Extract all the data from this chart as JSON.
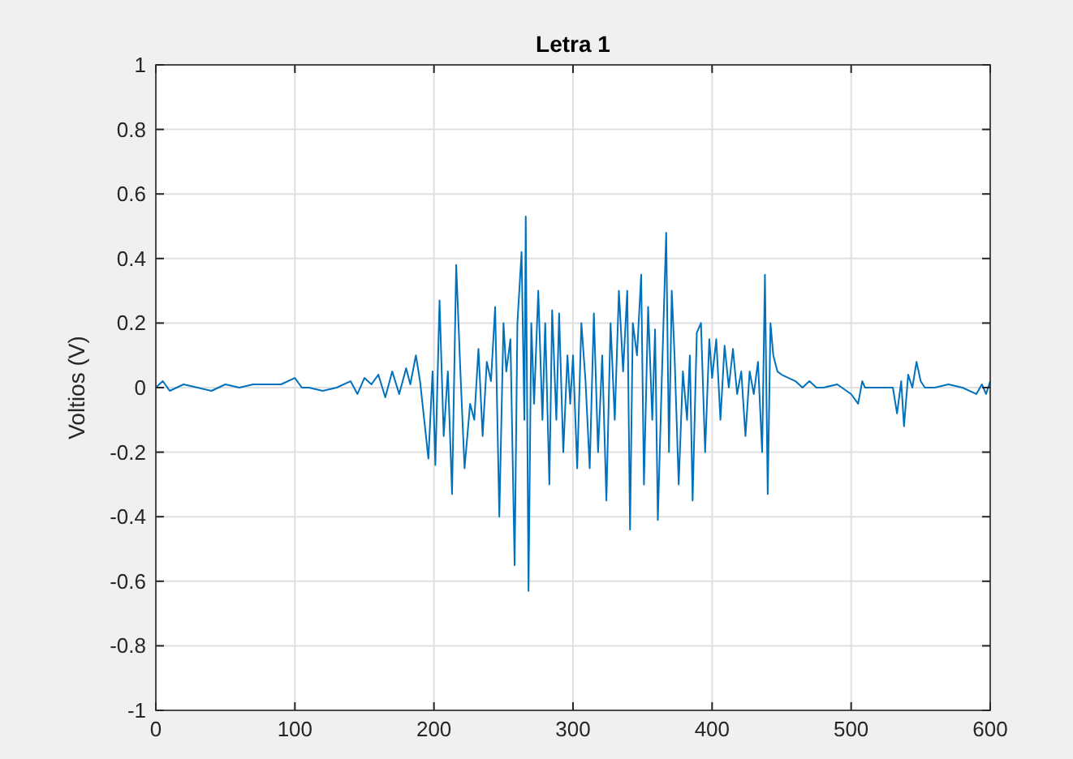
{
  "chart_data": {
    "type": "line",
    "title": "Letra 1",
    "ylabel": "Voltios (V)",
    "xlim": [
      0,
      600
    ],
    "xticks": [
      0,
      100,
      200,
      300,
      400,
      500,
      600
    ],
    "ylim": [
      -1,
      1
    ],
    "yticks": [
      -1,
      -0.8,
      -0.6,
      -0.4,
      -0.2,
      0,
      0.2,
      0.4,
      0.6,
      0.8,
      1
    ],
    "grid": true,
    "series": [
      {
        "color": "#0072bd",
        "x": [
          0,
          5,
          10,
          20,
          30,
          40,
          50,
          60,
          70,
          80,
          90,
          100,
          105,
          110,
          120,
          130,
          140,
          145,
          150,
          155,
          160,
          165,
          170,
          175,
          180,
          183,
          187,
          190,
          193,
          196,
          199,
          201,
          204,
          207,
          210,
          213,
          216,
          219,
          222,
          226,
          229,
          232,
          235,
          238,
          241,
          244,
          247,
          250,
          252,
          255,
          258,
          260,
          263,
          265,
          266,
          268,
          270,
          272,
          275,
          278,
          280,
          283,
          285,
          288,
          290,
          293,
          296,
          298,
          300,
          303,
          306,
          309,
          312,
          315,
          318,
          321,
          324,
          327,
          330,
          333,
          336,
          339,
          341,
          343,
          346,
          349,
          351,
          354,
          357,
          359,
          361,
          364,
          367,
          369,
          371,
          373,
          376,
          379,
          382,
          384,
          386,
          389,
          392,
          395,
          398,
          400,
          403,
          406,
          409,
          412,
          415,
          418,
          421,
          424,
          427,
          430,
          433,
          436,
          438,
          440,
          442,
          444,
          447,
          450,
          455,
          460,
          465,
          470,
          475,
          480,
          490,
          500,
          505,
          508,
          510,
          520,
          530,
          533,
          536,
          538,
          541,
          544,
          547,
          550,
          553,
          560,
          570,
          580,
          590,
          594,
          597,
          600
        ],
        "values": [
          0,
          0.02,
          -0.01,
          0.01,
          0,
          -0.01,
          0.01,
          0,
          0.01,
          0.01,
          0.01,
          0.03,
          0,
          0,
          -0.01,
          0,
          0.02,
          -0.02,
          0.03,
          0.01,
          0.04,
          -0.03,
          0.05,
          -0.02,
          0.06,
          0.01,
          0.1,
          0.02,
          -0.1,
          -0.22,
          0.05,
          -0.24,
          0.27,
          -0.15,
          0.05,
          -0.33,
          0.38,
          0.05,
          -0.25,
          -0.05,
          -0.1,
          0.12,
          -0.15,
          0.08,
          0.02,
          0.25,
          -0.4,
          0.2,
          0.05,
          0.15,
          -0.55,
          0.2,
          0.42,
          -0.1,
          0.53,
          -0.63,
          0.2,
          -0.05,
          0.3,
          -0.1,
          0.2,
          -0.3,
          0.24,
          -0.1,
          0.23,
          -0.2,
          0.1,
          -0.05,
          0.1,
          -0.25,
          0.2,
          0.02,
          -0.25,
          0.23,
          -0.2,
          0.1,
          -0.35,
          0.2,
          -0.1,
          0.3,
          0.05,
          0.3,
          -0.44,
          0.2,
          0.1,
          0.35,
          -0.3,
          0.25,
          -0.1,
          0.18,
          -0.41,
          0.05,
          0.48,
          -0.2,
          0.3,
          0.1,
          -0.3,
          0.05,
          -0.1,
          0.1,
          -0.35,
          0.17,
          0.2,
          -0.2,
          0.15,
          0.03,
          0.15,
          -0.1,
          0.13,
          0,
          0.12,
          -0.02,
          0.05,
          -0.15,
          0.05,
          -0.02,
          0.08,
          -0.2,
          0.35,
          -0.33,
          0.2,
          0.1,
          0.05,
          0.04,
          0.03,
          0.02,
          0,
          0.02,
          0,
          0,
          0.01,
          -0.02,
          -0.05,
          0.02,
          0,
          0,
          0,
          -0.08,
          0.02,
          -0.12,
          0.04,
          0,
          0.08,
          0.02,
          0,
          0,
          0.01,
          0,
          -0.02,
          0.01,
          -0.02,
          0.02
        ]
      }
    ]
  }
}
